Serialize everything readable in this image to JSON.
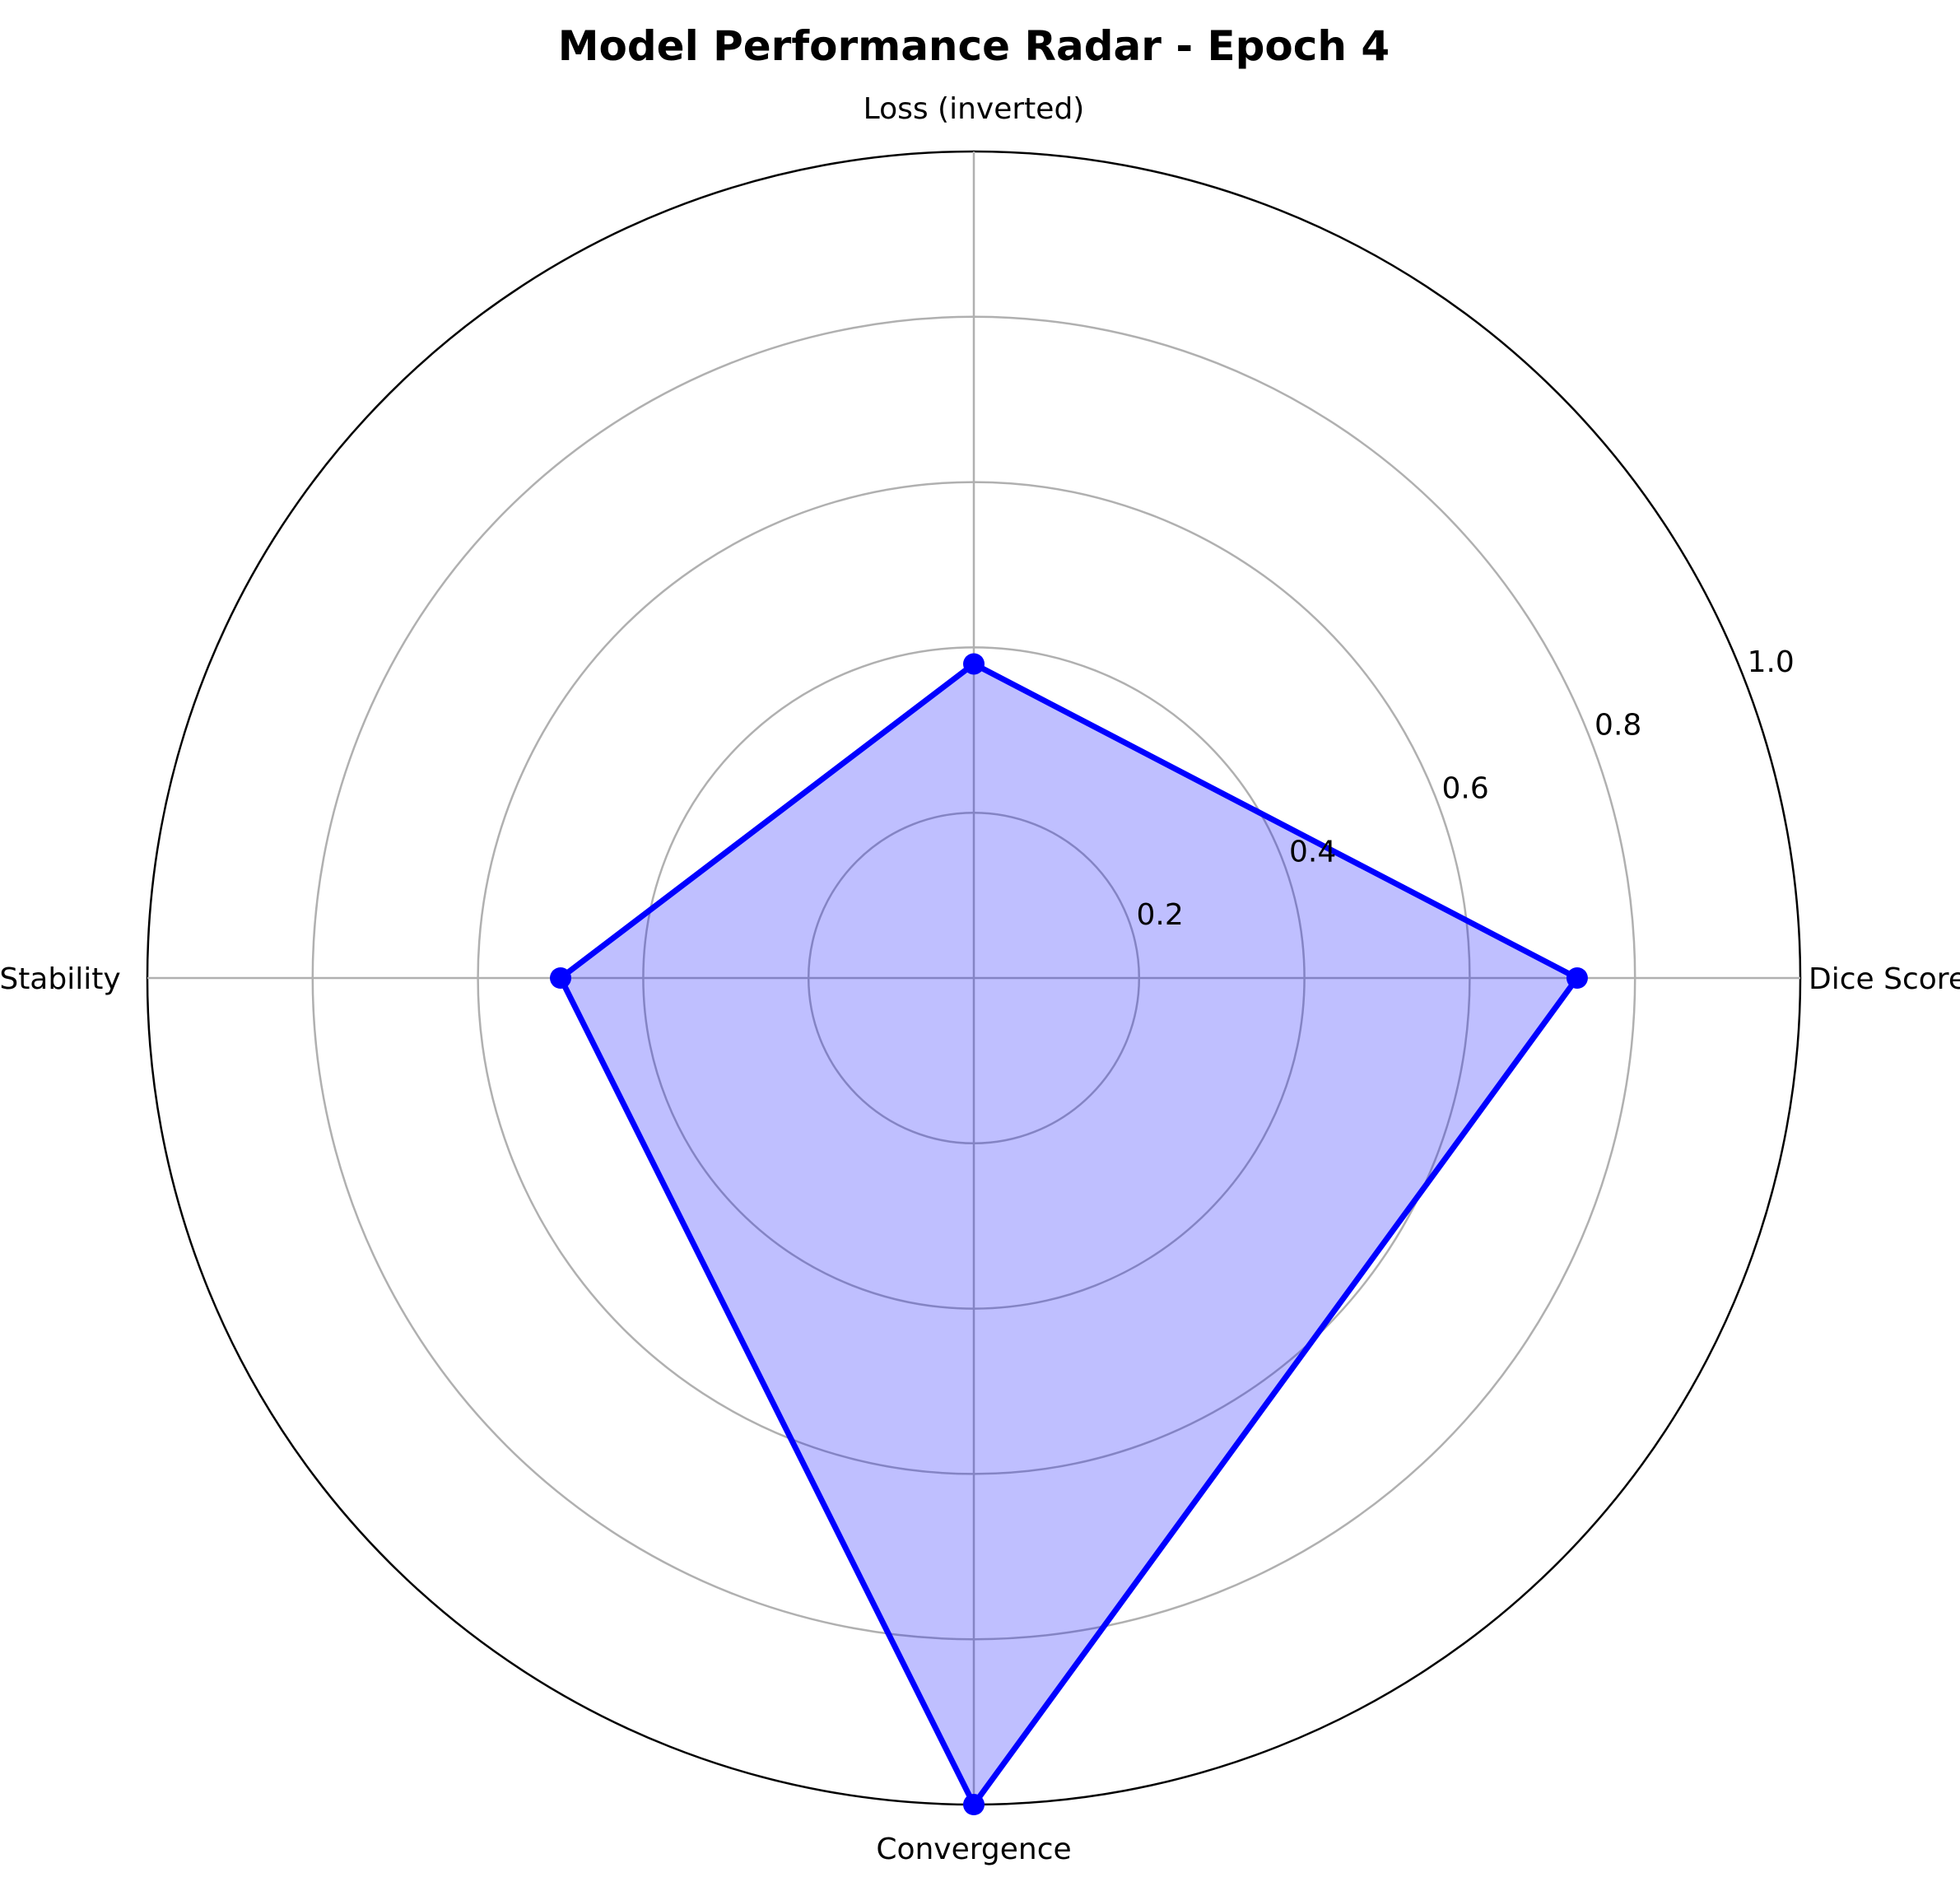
{
  "chart_data": {
    "type": "radar",
    "title": "Model Performance Radar - Epoch 4",
    "axes": [
      "Dice Score",
      "Loss (inverted)",
      "Stability",
      "Convergence"
    ],
    "values": [
      0.73,
      0.38,
      0.5,
      1.0
    ],
    "rlim": [
      0,
      1.0
    ],
    "rticks": [
      0.2,
      0.4,
      0.6,
      0.8,
      1.0
    ],
    "rtick_labels": [
      "0.2",
      "0.4",
      "0.6",
      "0.8",
      "1.0"
    ],
    "grid": true,
    "colors": {
      "line": "#0000ff",
      "fill": "#0000ff",
      "fill_opacity": 0.25,
      "grid": "#b0b0b0",
      "frame": "#000000"
    }
  }
}
